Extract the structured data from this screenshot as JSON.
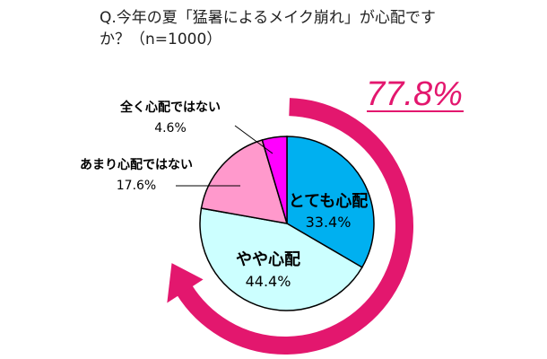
{
  "title": "Q.今年の夏「猛暑によるメイク崩れ」が心配ですか？（n=1000）",
  "highlight": {
    "text": "77.8%",
    "color": "#E3176E"
  },
  "chart_data": {
    "type": "pie",
    "slices": [
      {
        "label": "とても心配",
        "value": 33.4,
        "value_text": "33.4%",
        "color": "#00B0F0"
      },
      {
        "label": "やや心配",
        "value": 44.4,
        "value_text": "44.4%",
        "color": "#CCFFFF"
      },
      {
        "label": "あまり心配ではない",
        "value": 17.6,
        "value_text": "17.6%",
        "color": "#FF99CC"
      },
      {
        "label": "全く心配ではない",
        "value": 4.6,
        "value_text": "4.6%",
        "color": "#FF00FF"
      }
    ],
    "start": "12 o'clock",
    "direction": "clockwise"
  }
}
